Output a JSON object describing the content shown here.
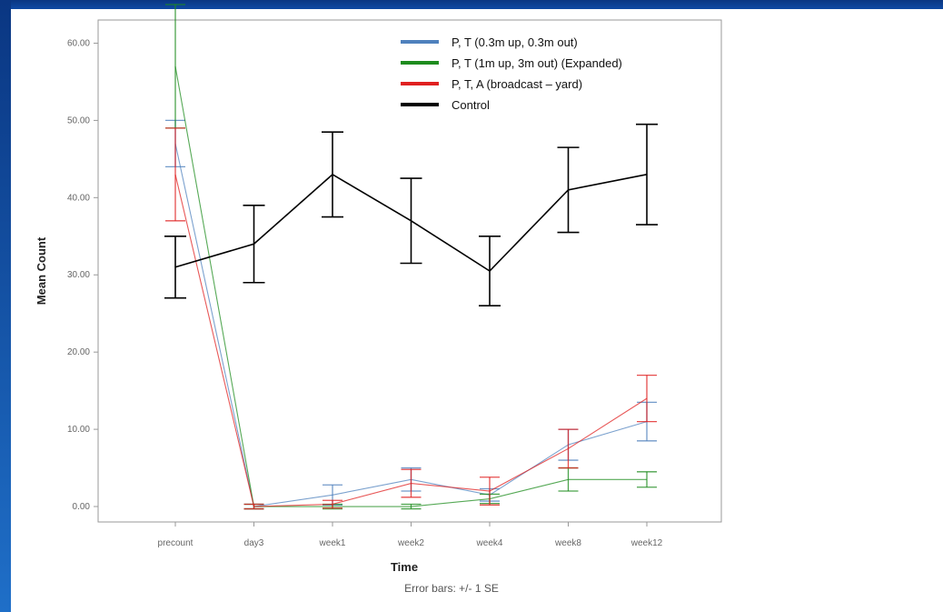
{
  "chart_data": {
    "type": "line",
    "title": "",
    "xlabel": "Time",
    "ylabel": "Mean Count",
    "footnote": "Error bars: +/- 1 SE",
    "categories": [
      "precount",
      "day3",
      "week1",
      "week2",
      "week4",
      "week8",
      "week12"
    ],
    "ylim": [
      -2,
      63
    ],
    "yticks": [
      0,
      10,
      20,
      30,
      40,
      50,
      60
    ],
    "ytick_labels": [
      "0.00",
      "10.00",
      "20.00",
      "30.00",
      "40.00",
      "50.00",
      "60.00"
    ],
    "grid": false,
    "legend_position": "top-center",
    "series": [
      {
        "name": "P, T (0.3m up, 0.3m out)",
        "color": "#4f81bd",
        "values": [
          47,
          0,
          1.5,
          3.5,
          1.5,
          8,
          11
        ],
        "error": [
          3,
          0.3,
          1.3,
          1.5,
          0.8,
          2,
          2.5
        ]
      },
      {
        "name": "P, T (1m up, 3m out) (Expanded)",
        "color": "#1e8c1e",
        "values": [
          57,
          0,
          0,
          0,
          1,
          3.5,
          3.5
        ],
        "error": [
          8,
          0.3,
          0.3,
          0.3,
          0.6,
          1.5,
          1
        ]
      },
      {
        "name": "P, T, A (broadcast – yard)",
        "color": "#e02020",
        "values": [
          43,
          0,
          0.3,
          3,
          2,
          7.5,
          14
        ],
        "error": [
          6,
          0.3,
          0.5,
          1.8,
          1.8,
          2.5,
          3
        ]
      },
      {
        "name": "Control",
        "color": "#000000",
        "values": [
          31,
          34,
          43,
          37,
          30.5,
          41,
          43
        ],
        "error": [
          4,
          5,
          5.5,
          5.5,
          4.5,
          5.5,
          6.5
        ]
      }
    ]
  }
}
